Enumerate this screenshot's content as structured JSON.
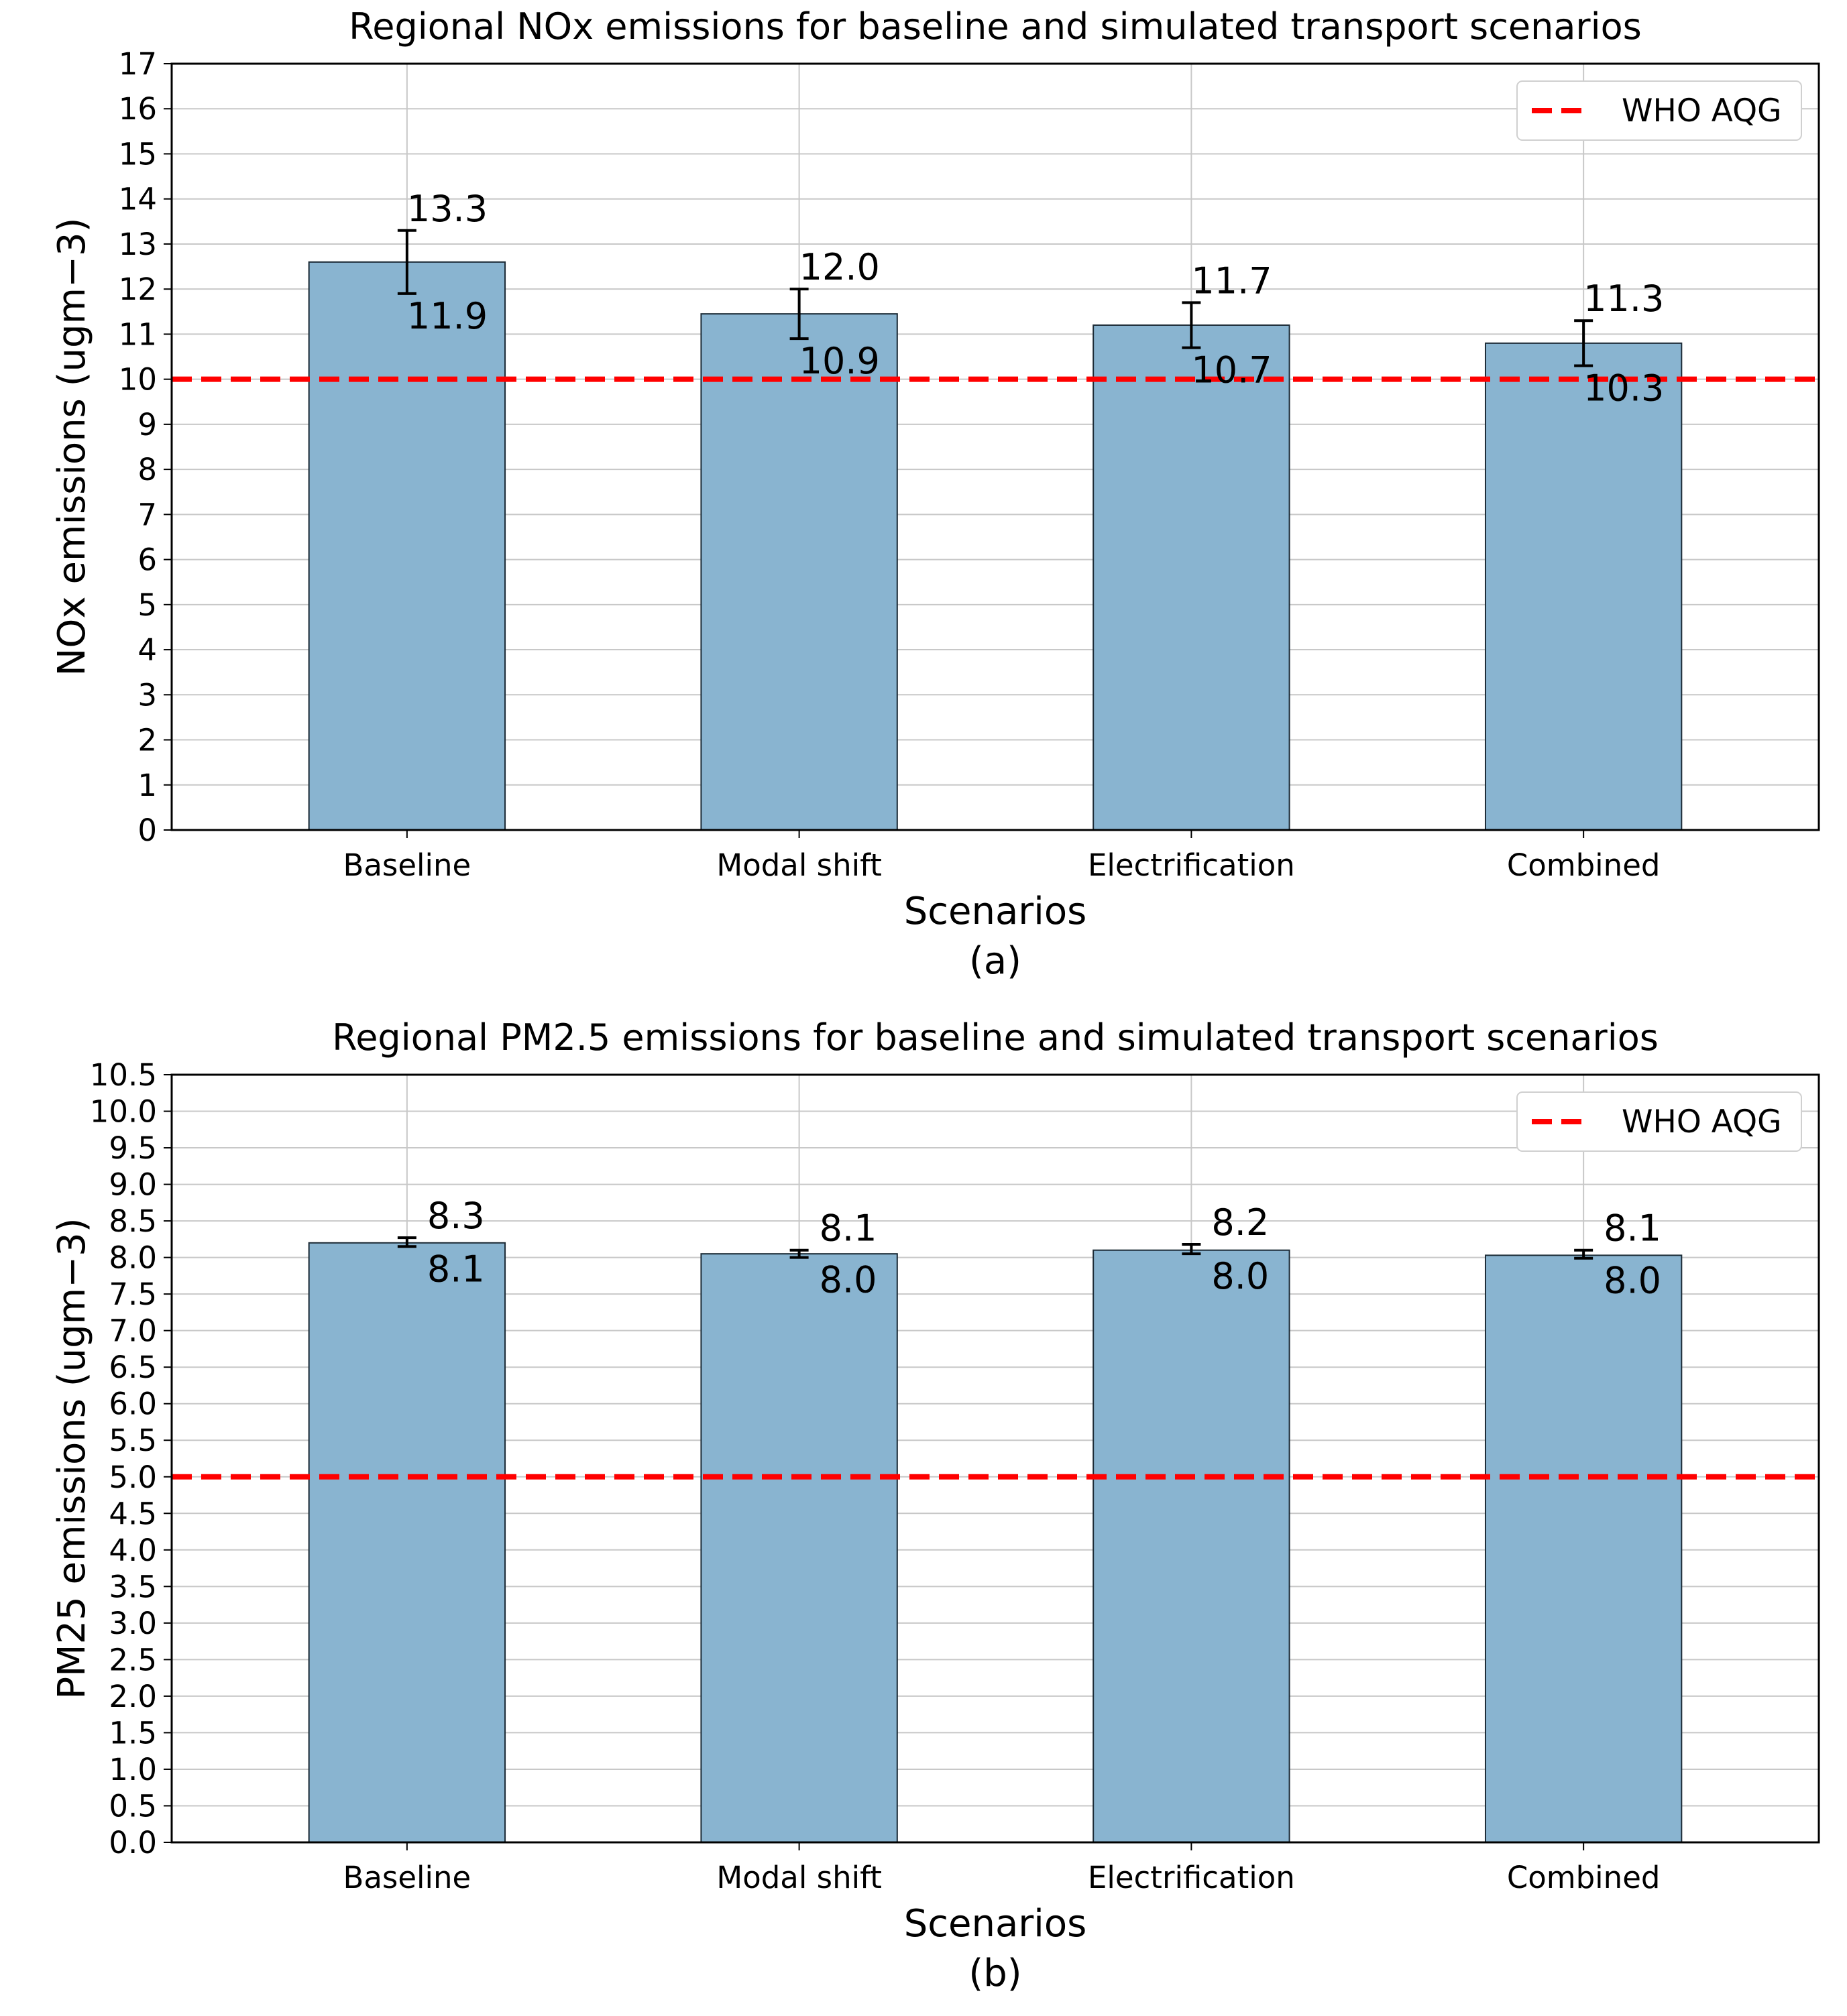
{
  "chart_data": [
    {
      "type": "bar",
      "title": "Regional NOx emissions for baseline and simulated transport scenarios",
      "xlabel": "Scenarios",
      "ylabel": "NOx emissions (ugm−3)",
      "panel_label": "(a)",
      "categories": [
        "Baseline",
        "Modal shift",
        "Electrification",
        "Combined"
      ],
      "values": [
        12.6,
        11.45,
        11.2,
        10.8
      ],
      "error_low": [
        11.9,
        10.9,
        10.7,
        10.3
      ],
      "error_high": [
        13.3,
        12.0,
        11.7,
        11.3
      ],
      "upper_labels": [
        "13.3",
        "12.0",
        "11.7",
        "11.3"
      ],
      "lower_labels": [
        "11.9",
        "10.9",
        "10.7",
        "10.3"
      ],
      "ylim": [
        0,
        17
      ],
      "yticks": [
        0,
        1,
        2,
        3,
        4,
        5,
        6,
        7,
        8,
        9,
        10,
        11,
        12,
        13,
        14,
        15,
        16,
        17
      ],
      "ytick_labels": [
        "0",
        "1",
        "2",
        "3",
        "4",
        "5",
        "6",
        "7",
        "8",
        "9",
        "10",
        "11",
        "12",
        "13",
        "14",
        "15",
        "16",
        "17"
      ],
      "reference_line": {
        "label": "WHO AQG",
        "value": 10,
        "color": "#ff0000",
        "style": "dashed"
      },
      "legend": {
        "entries": [
          "WHO AQG"
        ],
        "placement": "top-right"
      },
      "grid": true,
      "bar_color": "#89b4d0"
    },
    {
      "type": "bar",
      "title": "Regional PM2.5 emissions for baseline and simulated transport scenarios",
      "xlabel": "Scenarios",
      "ylabel": "PM25 emissions (ugm−3)",
      "panel_label": "(b)",
      "categories": [
        "Baseline",
        "Modal shift",
        "Electrification",
        "Combined"
      ],
      "values": [
        8.2,
        8.05,
        8.1,
        8.03
      ],
      "error_low": [
        8.15,
        8.0,
        8.05,
        7.99
      ],
      "error_high": [
        8.27,
        8.1,
        8.18,
        8.1
      ],
      "upper_labels": [
        "8.3",
        "8.1",
        "8.2",
        "8.1"
      ],
      "lower_labels": [
        "8.1",
        "8.0",
        "8.0",
        "8.0"
      ],
      "ylim": [
        0,
        10.5
      ],
      "yticks": [
        0.0,
        0.5,
        1.0,
        1.5,
        2.0,
        2.5,
        3.0,
        3.5,
        4.0,
        4.5,
        5.0,
        5.5,
        6.0,
        6.5,
        7.0,
        7.5,
        8.0,
        8.5,
        9.0,
        9.5,
        10.0,
        10.5
      ],
      "ytick_labels": [
        "0.0",
        "0.5",
        "1.0",
        "1.5",
        "2.0",
        "2.5",
        "3.0",
        "3.5",
        "4.0",
        "4.5",
        "5.0",
        "5.5",
        "6.0",
        "6.5",
        "7.0",
        "7.5",
        "8.0",
        "8.5",
        "9.0",
        "9.5",
        "10.0",
        "10.5"
      ],
      "reference_line": {
        "label": "WHO AQG",
        "value": 5,
        "color": "#ff0000",
        "style": "dashed"
      },
      "legend": {
        "entries": [
          "WHO AQG"
        ],
        "placement": "top-right"
      },
      "grid": true,
      "bar_color": "#89b4d0"
    }
  ]
}
